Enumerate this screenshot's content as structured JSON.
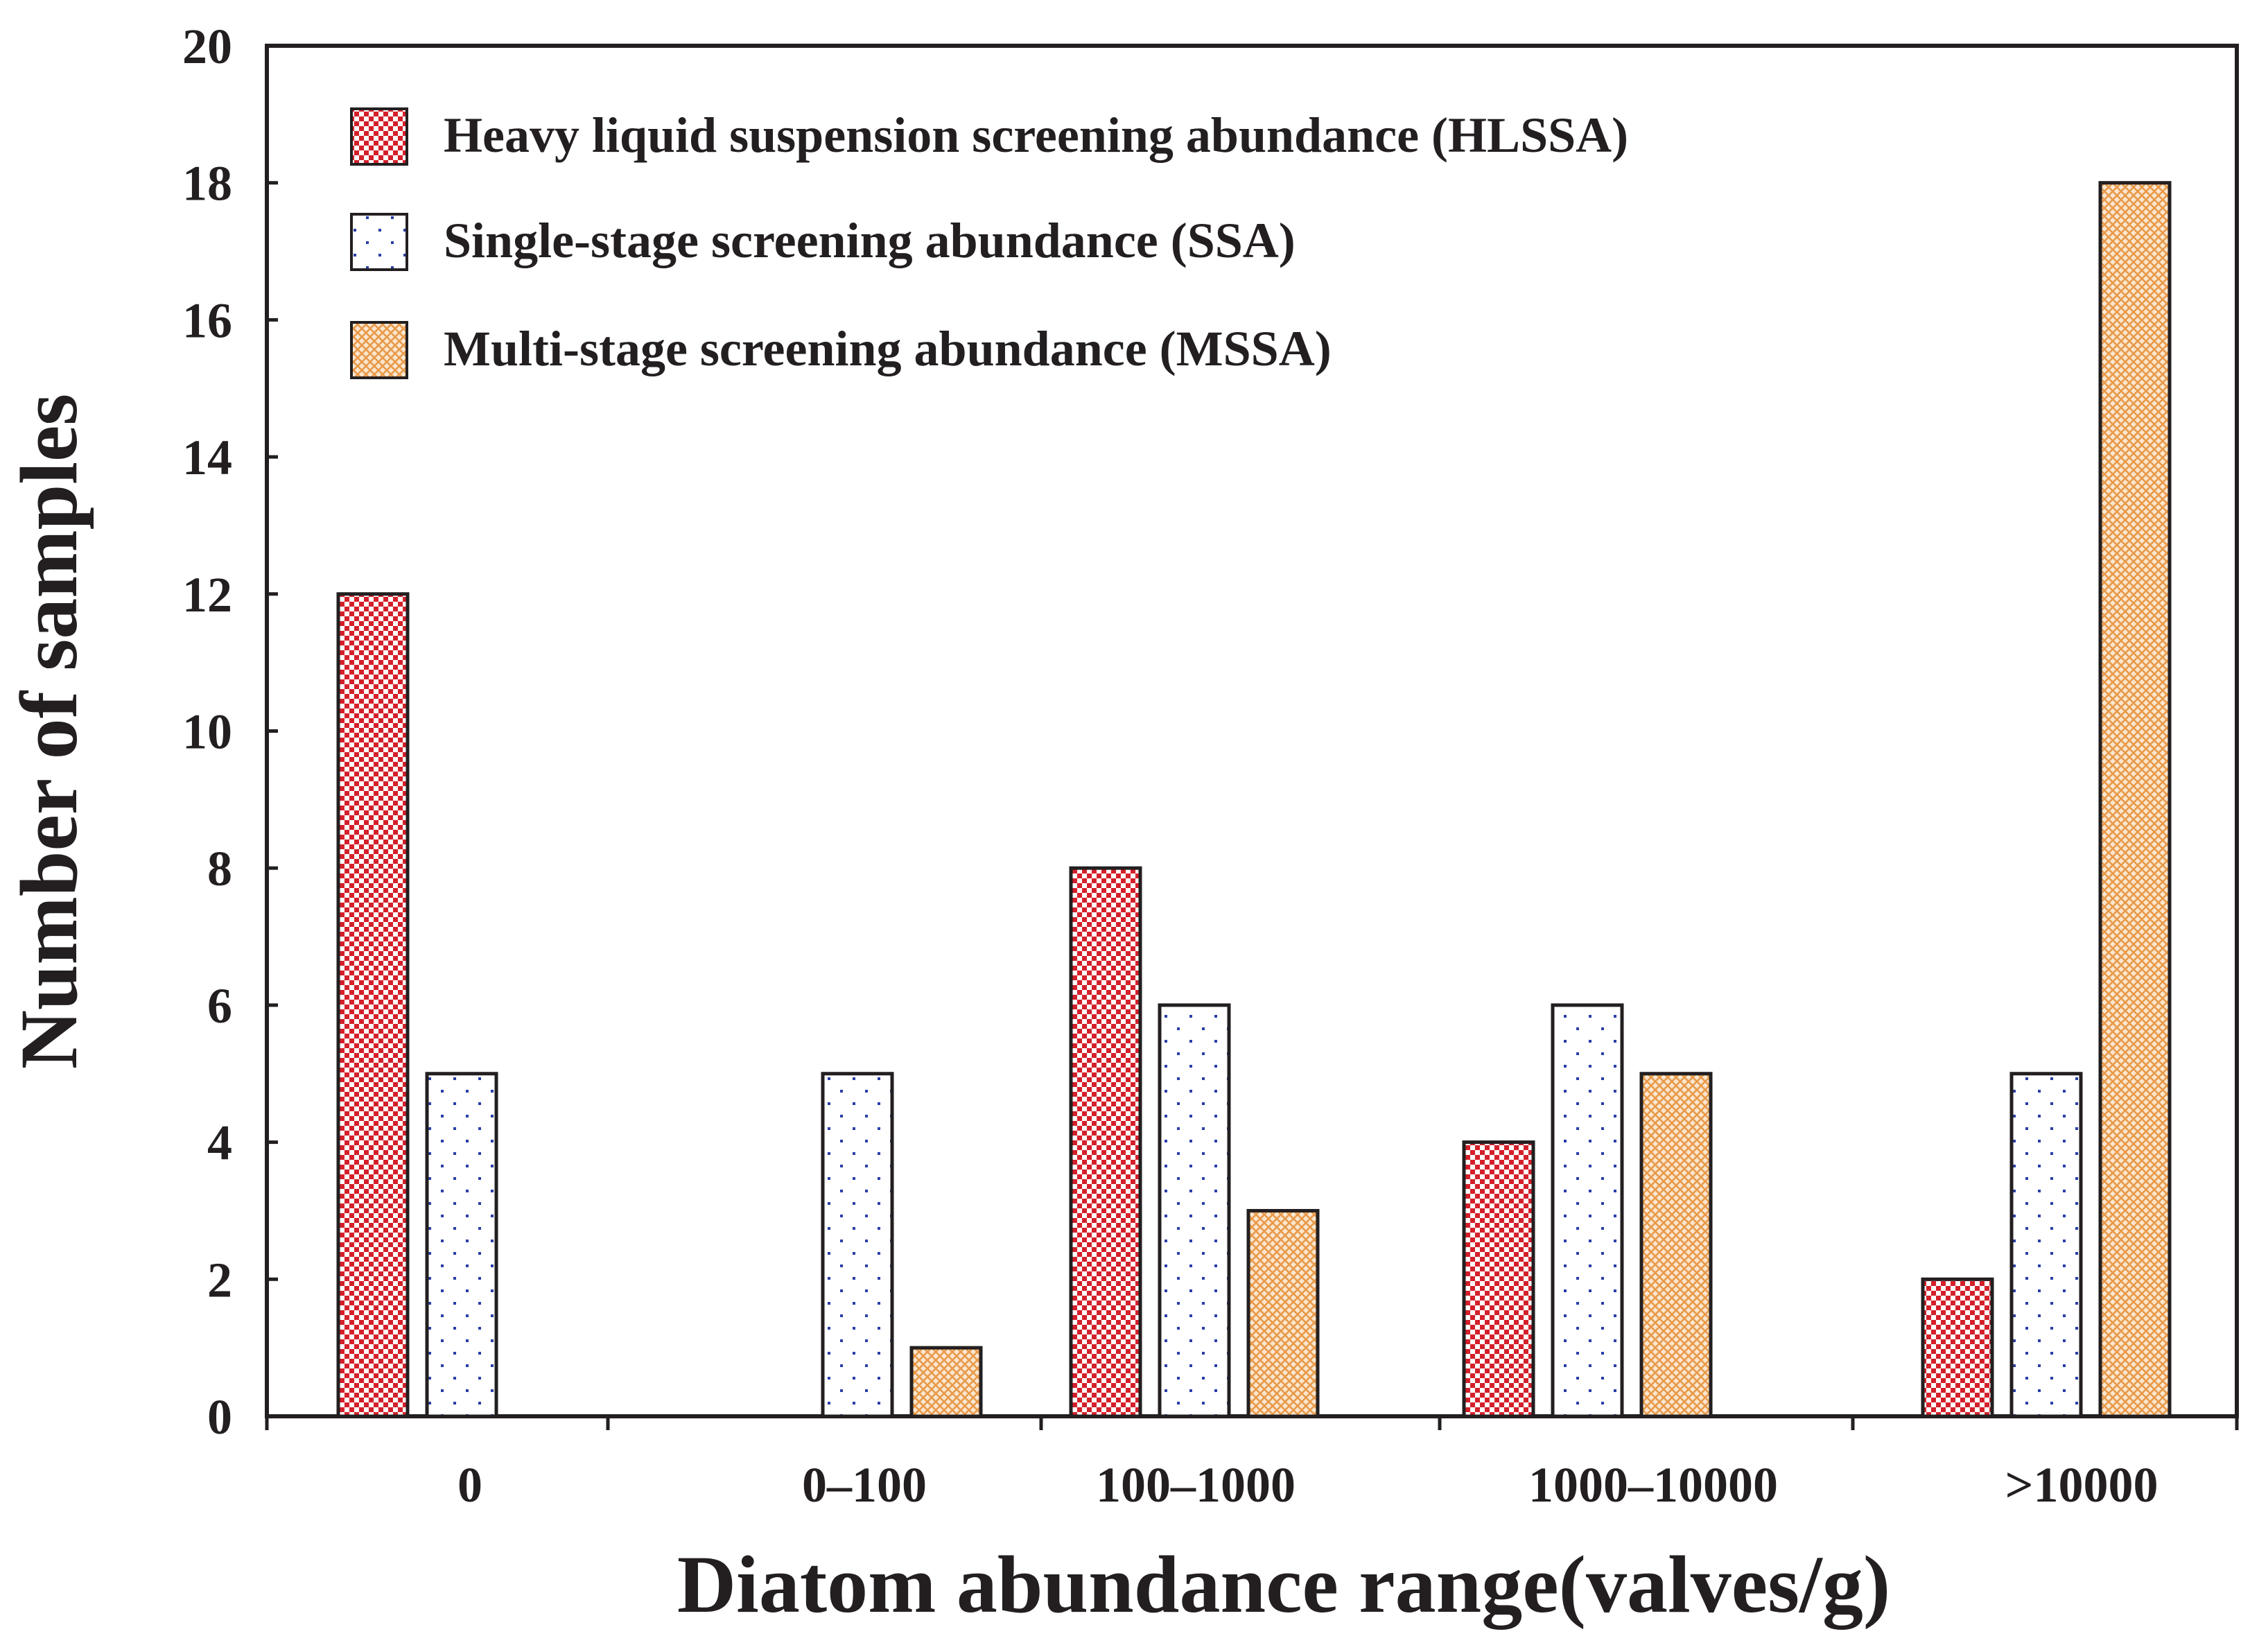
{
  "chart_data": {
    "type": "bar",
    "title": "",
    "xlabel": "Diatom abundance range(valves/g)",
    "ylabel": "Number of  samples",
    "ylim": [
      0,
      20
    ],
    "yticks": [
      "0",
      "2",
      "4",
      "6",
      "8",
      "10",
      "12",
      "14",
      "16",
      "18",
      "20"
    ],
    "categories": [
      "0",
      "0–100",
      "100–1000",
      "1000–10000",
      ">10000"
    ],
    "legend_position": "top-left",
    "grid": false,
    "series": [
      {
        "name": "Heavy liquid suspension screening abundance (HLSSA)",
        "pattern": "checker",
        "color": "#d4202a",
        "values": [
          12,
          0,
          8,
          4,
          2
        ]
      },
      {
        "name": "Single-stage screening abundance (SSA)",
        "pattern": "dots",
        "color": "#2a3ea8",
        "values": [
          5,
          5,
          6,
          6,
          5
        ]
      },
      {
        "name": "Multi-stage screening abundance (MSSA)",
        "pattern": "crosshatch",
        "color": "#e89a4a",
        "values": [
          0,
          1,
          3,
          5,
          18
        ]
      }
    ]
  }
}
